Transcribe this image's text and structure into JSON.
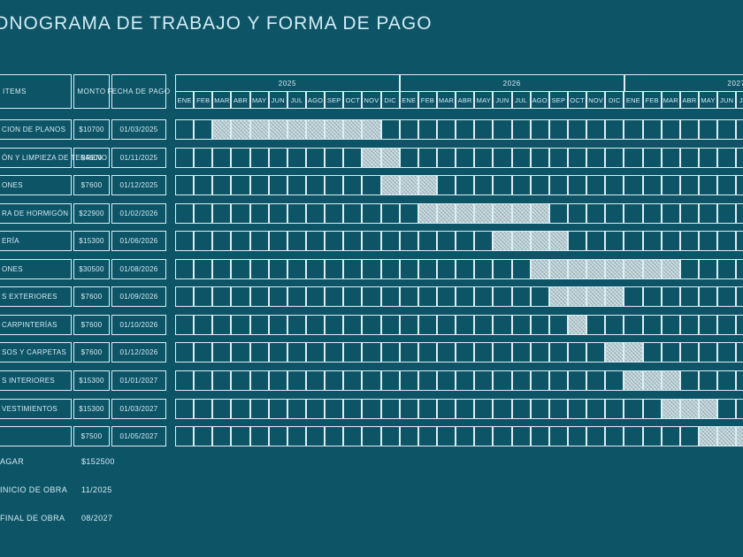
{
  "title": "ONOGRAMA DE TRABAJO Y FORMA DE PAGO",
  "table": {
    "headers": {
      "items": "ITEMS",
      "monto": "MONTO",
      "fecha": "FECHA DE PAGO"
    }
  },
  "colors": {
    "background": "#0d5467",
    "grid_line": "#dceef4",
    "text": "#d3ebf3",
    "bar_fill": "#b2c6cd"
  },
  "summary": [
    {
      "label": "AGAR",
      "value": "$152500"
    },
    {
      "label": "INICIO DE OBRA",
      "value": "11/2025"
    },
    {
      "label": "FINAL DE OBRA",
      "value": "08/2027"
    }
  ],
  "chart_data": {
    "type": "table",
    "subtype": "gantt-schedule",
    "title": "ONOGRAMA DE TRABAJO Y FORMA DE PAGO",
    "columns": [
      "ITEMS",
      "MONTO",
      "FECHA DE PAGO"
    ],
    "years": [
      "2025",
      "2026",
      "2027"
    ],
    "month_labels": [
      "ENE",
      "FEB",
      "MAR",
      "ABR",
      "MAY",
      "JUN",
      "JUL",
      "AGO",
      "SEP",
      "OCT",
      "NOV",
      "DIC"
    ],
    "months_visible_2027": "ENE through partial JUL (clipped at right edge)",
    "rows": [
      {
        "item": "CION DE PLANOS",
        "monto": "$10700",
        "fecha": "01/03/2025",
        "bar_start": 2,
        "bar_len": 9,
        "bar_range": "03/2025-11/2025"
      },
      {
        "item": "ÓN Y LIMPIEZA DE TERRENO",
        "monto": "$4600",
        "fecha": "01/11/2025",
        "bar_start": 10,
        "bar_len": 2,
        "bar_range": "11/2025-12/2025"
      },
      {
        "item": "ONES",
        "monto": "$7600",
        "fecha": "01/12/2025",
        "bar_start": 11,
        "bar_len": 3,
        "bar_range": "12/2025-02/2026"
      },
      {
        "item": "RA DE HORMIGÓN",
        "monto": "$22900",
        "fecha": "01/02/2026",
        "bar_start": 13,
        "bar_len": 7,
        "bar_range": "02/2026-08/2026"
      },
      {
        "item": "ERÍA",
        "monto": "$15300",
        "fecha": "01/06/2026",
        "bar_start": 17,
        "bar_len": 4,
        "bar_range": "06/2026-09/2026"
      },
      {
        "item": "ONES",
        "monto": "$30500",
        "fecha": "01/08/2026",
        "bar_start": 19,
        "bar_len": 8,
        "bar_range": "08/2026-03/2027"
      },
      {
        "item": "S EXTERIORES",
        "monto": "$7600",
        "fecha": "01/09/2026",
        "bar_start": 20,
        "bar_len": 4,
        "bar_range": "09/2026-12/2026"
      },
      {
        "item": "CARPINTERÍAS",
        "monto": "$7600",
        "fecha": "01/10/2026",
        "bar_start": 21,
        "bar_len": 1,
        "bar_range": "10/2026"
      },
      {
        "item": "SOS Y CARPETAS",
        "monto": "$7600",
        "fecha": "01/12/2026",
        "bar_start": 23,
        "bar_len": 2,
        "bar_range": "12/2026-01/2027"
      },
      {
        "item": "S INTERIORES",
        "monto": "$15300",
        "fecha": "01/01/2027",
        "bar_start": 24,
        "bar_len": 3,
        "bar_range": "01/2027-03/2027"
      },
      {
        "item": "VESTIMIENTOS",
        "monto": "$15300",
        "fecha": "01/03/2027",
        "bar_start": 26,
        "bar_len": 3,
        "bar_range": "03/2027-05/2027"
      },
      {
        "item": "",
        "monto": "$7500",
        "fecha": "01/05/2027",
        "bar_start": 28,
        "bar_len": 3,
        "bar_range": "05/2027-07/2027 (clipped)"
      }
    ],
    "totals": [
      {
        "label": "AGAR",
        "value": "$152500"
      },
      {
        "label": "INICIO DE OBRA",
        "value": "11/2025"
      },
      {
        "label": "FINAL DE OBRA",
        "value": "08/2027"
      }
    ]
  }
}
